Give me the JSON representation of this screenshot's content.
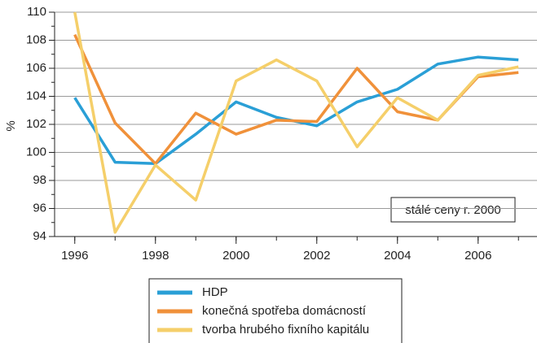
{
  "chart_data": {
    "type": "line",
    "y_label": "%",
    "annotation": "stálé ceny r. 2000",
    "x": [
      1996,
      1997,
      1998,
      1999,
      2000,
      2001,
      2002,
      2003,
      2004,
      2005,
      2006,
      2007
    ],
    "series": [
      {
        "name": "HDP",
        "color": "#2a9fd6",
        "values": [
          103.9,
          99.3,
          99.2,
          101.3,
          103.6,
          102.5,
          101.9,
          103.6,
          104.5,
          106.3,
          106.8,
          106.6
        ]
      },
      {
        "name": "konečná spotřeba domácností",
        "color": "#f0913a",
        "values": [
          108.4,
          102.1,
          99.2,
          102.8,
          101.3,
          102.3,
          102.2,
          106.0,
          102.9,
          102.3,
          105.4,
          105.7
        ]
      },
      {
        "name": "tvorba hrubého fixního kapitálu",
        "color": "#f5cf6a",
        "values": [
          110.0,
          94.3,
          99.1,
          96.6,
          105.1,
          106.6,
          105.1,
          100.4,
          103.9,
          102.3,
          105.5,
          106.1
        ]
      }
    ],
    "xlim": [
      1995.5,
      2007.5
    ],
    "xticks": [
      1996,
      1998,
      2000,
      2002,
      2004,
      2006
    ],
    "ylim": [
      94,
      110
    ],
    "yticks": [
      94,
      96,
      98,
      100,
      102,
      104,
      106,
      108,
      110
    ],
    "grid": true
  }
}
